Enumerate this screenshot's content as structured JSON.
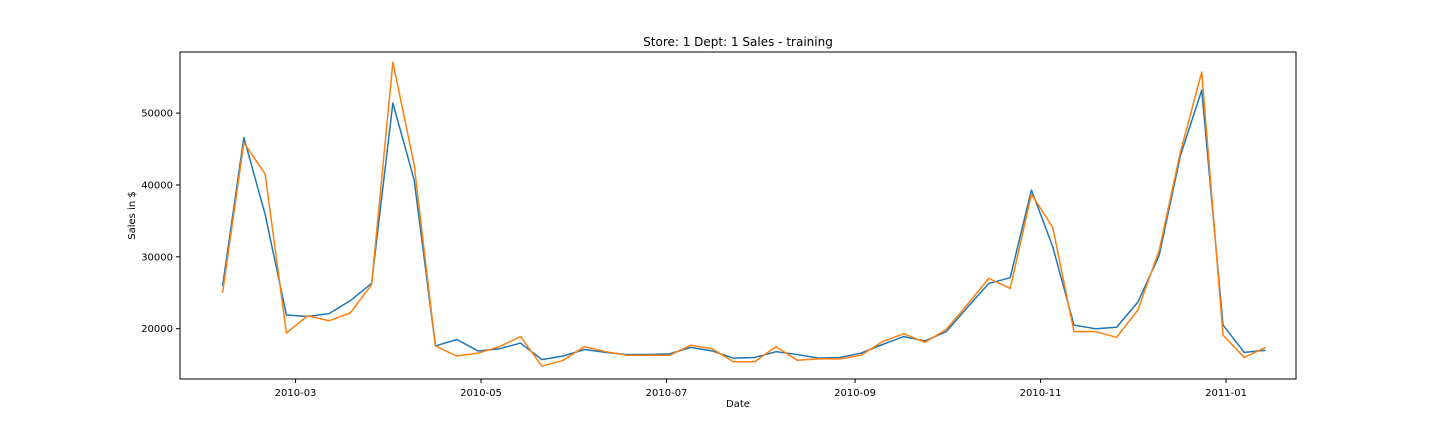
{
  "chart_data": {
    "type": "line",
    "title": "Store: 1 Dept: 1 Sales - training",
    "xlabel": "Date",
    "ylabel": "Sales in $",
    "xlim": [
      "2010-01-22",
      "2011-01-24"
    ],
    "ylim": [
      13000,
      58500
    ],
    "grid": false,
    "x_ticks": [
      "2010-03",
      "2010-05",
      "2010-07",
      "2010-09",
      "2010-11",
      "2011-01"
    ],
    "y_ticks": [
      20000,
      30000,
      40000,
      50000
    ],
    "x": [
      "2010-02-05",
      "2010-02-12",
      "2010-02-19",
      "2010-02-26",
      "2010-03-05",
      "2010-03-12",
      "2010-03-19",
      "2010-03-26",
      "2010-04-02",
      "2010-04-09",
      "2010-04-16",
      "2010-04-23",
      "2010-04-30",
      "2010-05-07",
      "2010-05-14",
      "2010-05-21",
      "2010-05-28",
      "2010-06-04",
      "2010-06-11",
      "2010-06-18",
      "2010-06-25",
      "2010-07-02",
      "2010-07-09",
      "2010-07-16",
      "2010-07-23",
      "2010-07-30",
      "2010-08-06",
      "2010-08-13",
      "2010-08-20",
      "2010-08-27",
      "2010-09-03",
      "2010-09-10",
      "2010-09-17",
      "2010-09-24",
      "2010-10-01",
      "2010-10-08",
      "2010-10-15",
      "2010-10-22",
      "2010-10-29",
      "2010-11-05",
      "2010-11-12",
      "2010-11-19",
      "2010-11-26",
      "2010-12-03",
      "2010-12-10",
      "2010-12-17",
      "2010-12-24",
      "2010-12-31",
      "2011-01-07",
      "2011-01-14"
    ],
    "series": [
      {
        "color": "#1f77b4",
        "values": [
          25900,
          46600,
          35900,
          21900,
          21700,
          22100,
          23900,
          26300,
          51400,
          40700,
          17600,
          18500,
          16900,
          17200,
          18000,
          15700,
          16200,
          17100,
          16700,
          16400,
          16400,
          16500,
          17400,
          16900,
          15900,
          16000,
          16800,
          16400,
          15900,
          16000,
          16600,
          17800,
          18900,
          18300,
          19600,
          23000,
          26300,
          27100,
          39300,
          31400,
          20500,
          20000,
          20200,
          23700,
          30200,
          44100,
          53200,
          20500,
          16700,
          17000
        ]
      },
      {
        "color": "#ff7f0e",
        "values": [
          25000,
          45900,
          41500,
          19400,
          21800,
          21100,
          22200,
          26100,
          57100,
          42800,
          17600,
          16200,
          16600,
          17500,
          18900,
          14800,
          15600,
          17500,
          16800,
          16300,
          16300,
          16300,
          17700,
          17200,
          15400,
          15400,
          17500,
          15600,
          15800,
          15800,
          16300,
          18200,
          19300,
          18100,
          19900,
          23400,
          27000,
          25600,
          38700,
          34100,
          19600,
          19600,
          18800,
          22600,
          30900,
          44600,
          55700,
          19100,
          16000,
          17400
        ]
      }
    ]
  }
}
